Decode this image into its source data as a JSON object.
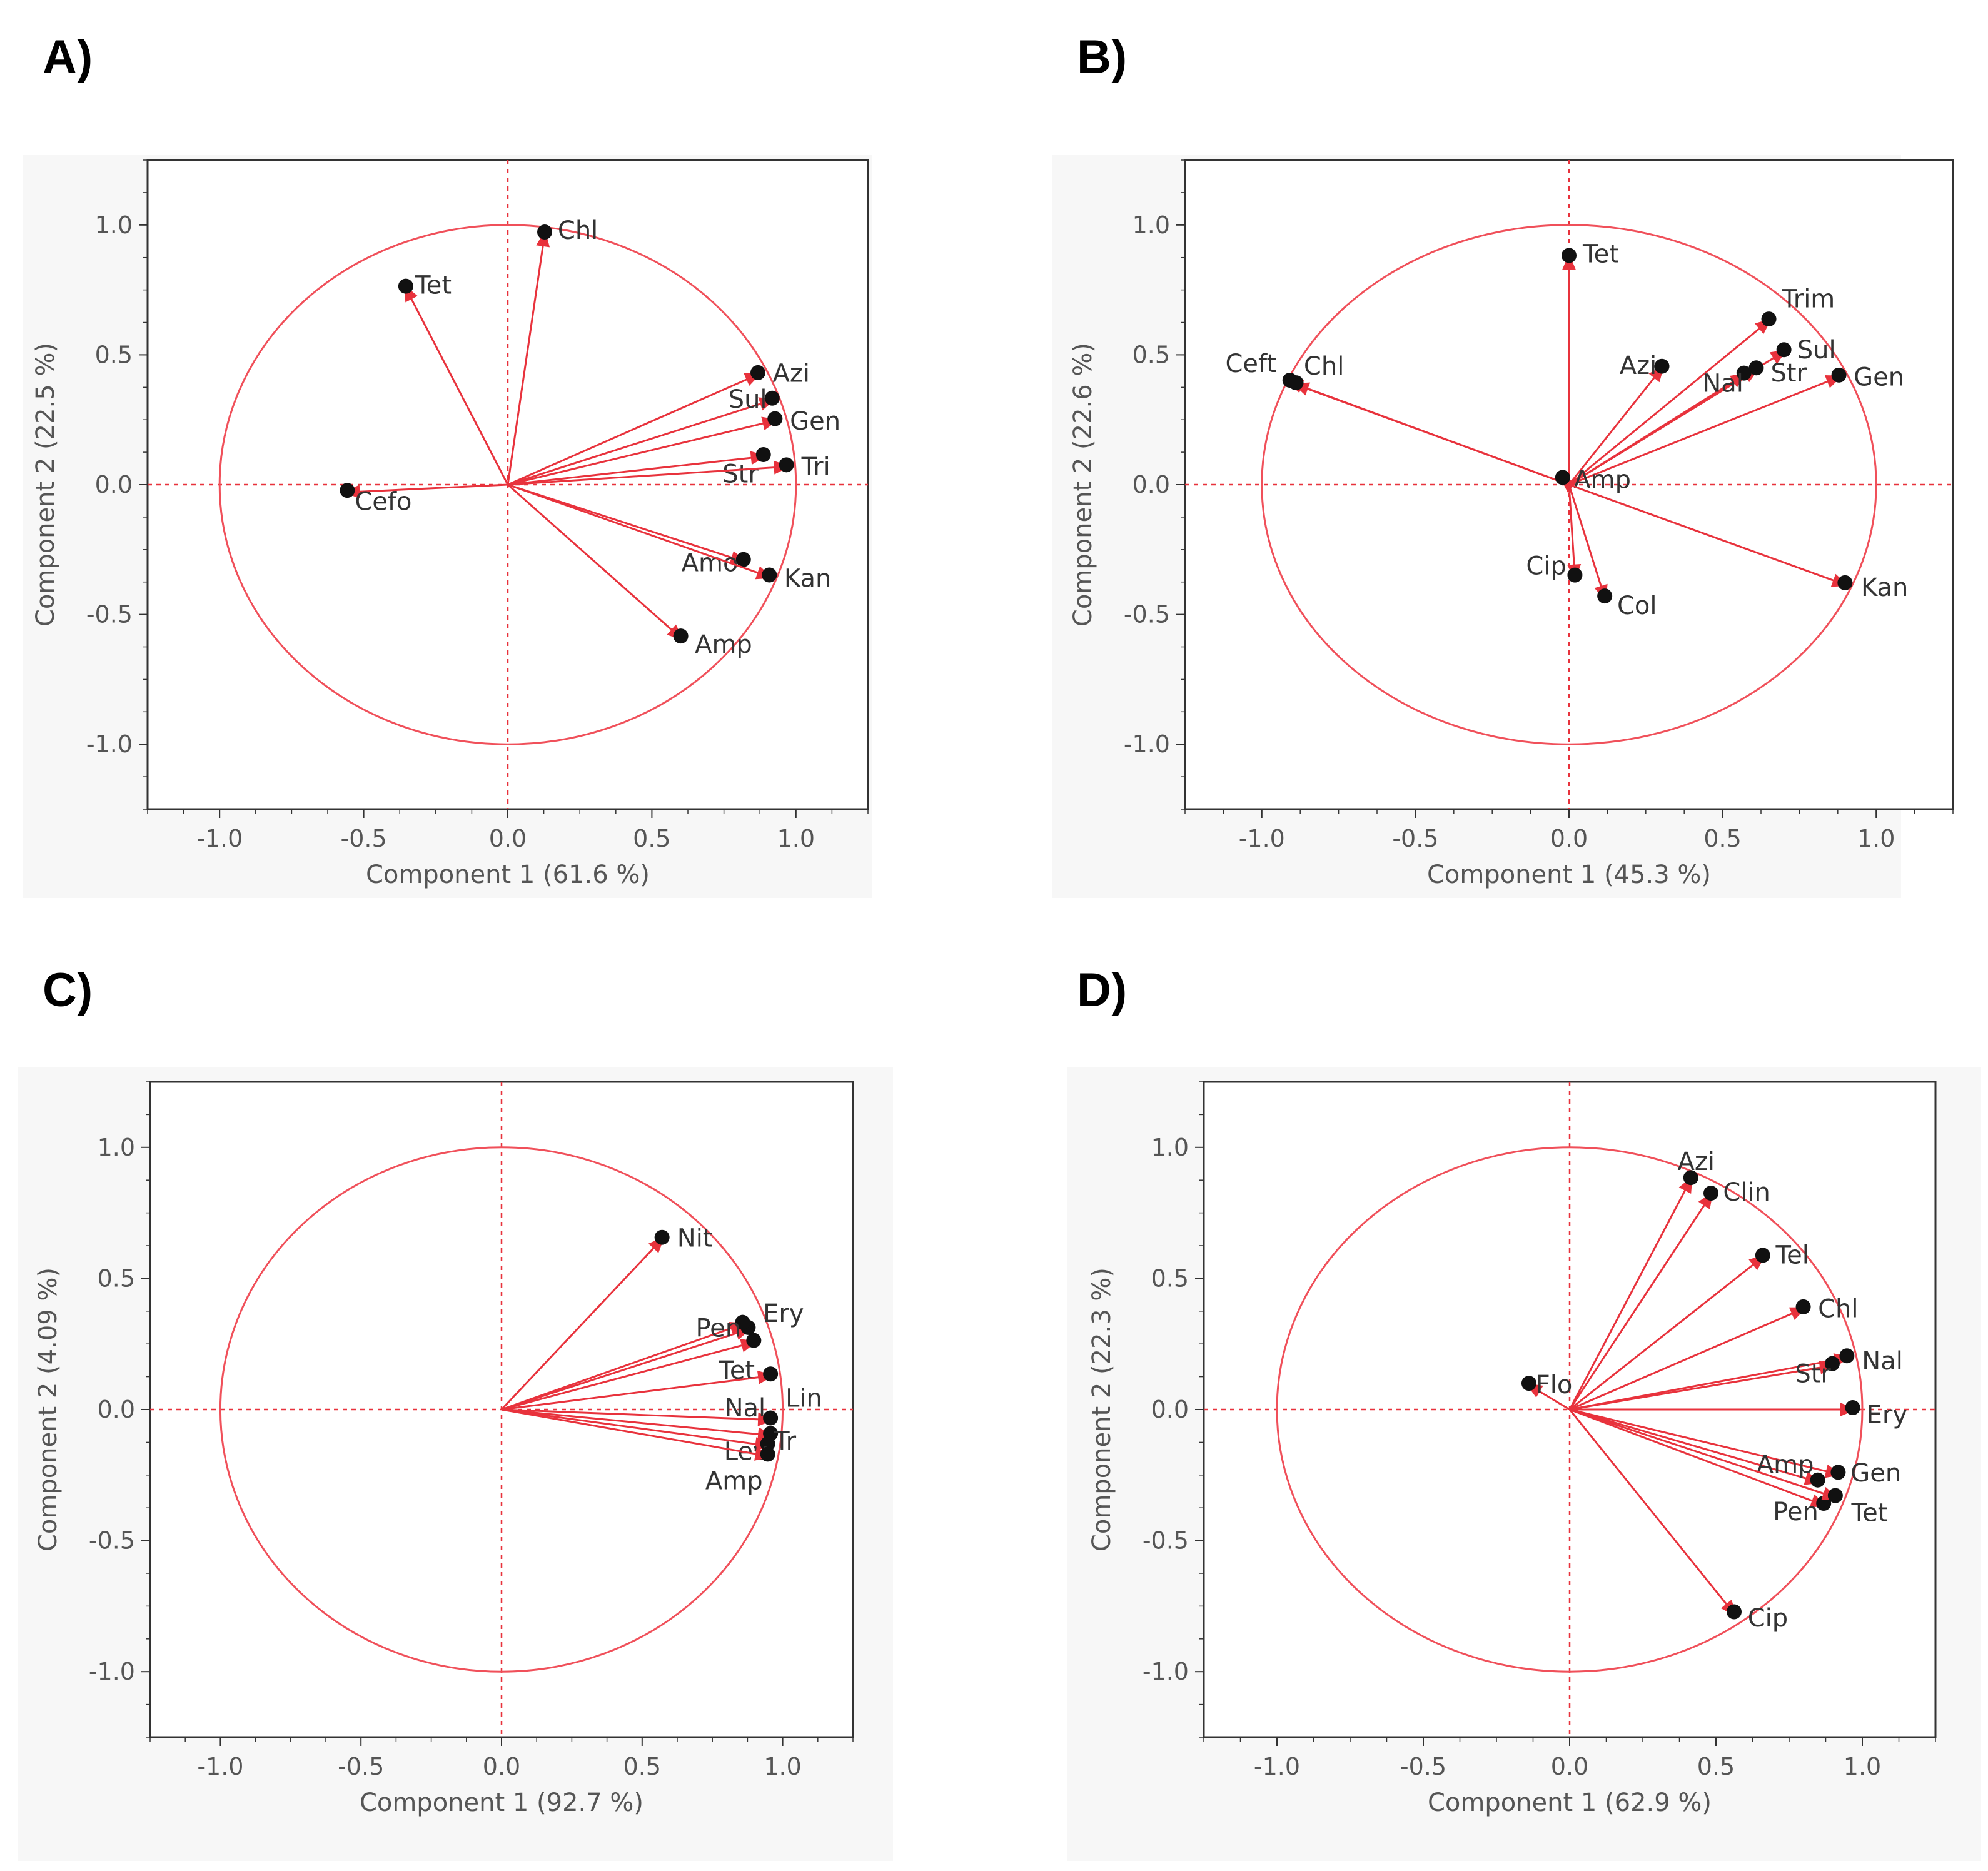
{
  "colors": {
    "accent": "#e8323c",
    "circle": "#f0505a",
    "point": "#111111",
    "frame": "#333333",
    "panel_bg": "#f7f7f7"
  },
  "chart_data": [
    {
      "panel": "A)",
      "type": "scatter",
      "xlabel": "Component 1  (61.6 %)",
      "ylabel": "Component 2  (22.5 %)",
      "xlim": [
        -1.25,
        1.25
      ],
      "ylim": [
        -1.25,
        1.25
      ],
      "xticks": [
        "-1.0",
        "-0.5",
        "0.0",
        "0.5",
        "1.0"
      ],
      "yticks": [
        "1.0",
        "0.5",
        "0.0",
        "-0.5",
        "-1.0"
      ],
      "points": [
        {
          "label": "Chl",
          "x": 0.13,
          "y": 0.98
        },
        {
          "label": "Tet",
          "x": -0.36,
          "y": 0.77
        },
        {
          "label": "Azi",
          "x": 0.88,
          "y": 0.43
        },
        {
          "label": "Sul",
          "x": 0.93,
          "y": 0.33
        },
        {
          "label": "Gen",
          "x": 0.94,
          "y": 0.25
        },
        {
          "label": "Str",
          "x": 0.9,
          "y": 0.11
        },
        {
          "label": "Tri",
          "x": 0.98,
          "y": 0.07
        },
        {
          "label": "Cefo",
          "x": -0.57,
          "y": -0.03
        },
        {
          "label": "Amo",
          "x": 0.83,
          "y": -0.3
        },
        {
          "label": "Kan",
          "x": 0.92,
          "y": -0.36
        },
        {
          "label": "Amp",
          "x": 0.61,
          "y": -0.6
        }
      ]
    },
    {
      "panel": "B)",
      "type": "scatter",
      "xlabel": "Component 1  (45.3 %)",
      "ylabel": "Component 2  (22.6 %)",
      "xlim": [
        -1.25,
        1.25
      ],
      "ylim": [
        -1.25,
        1.25
      ],
      "xticks": [
        "-1.0",
        "-0.5",
        "0.0",
        "0.5",
        "1.0"
      ],
      "yticks": [
        "1.0",
        "0.5",
        "0.0",
        "-0.5",
        "-1.0"
      ],
      "points": [
        {
          "label": "Tet",
          "x": 0.0,
          "y": 0.89
        },
        {
          "label": "Trim",
          "x": 0.66,
          "y": 0.64
        },
        {
          "label": "Sul",
          "x": 0.71,
          "y": 0.52
        },
        {
          "label": "Azi",
          "x": 0.31,
          "y": 0.46
        },
        {
          "label": "Str",
          "x": 0.62,
          "y": 0.45
        },
        {
          "label": "Nal",
          "x": 0.58,
          "y": 0.43
        },
        {
          "label": "Gen",
          "x": 0.89,
          "y": 0.42
        },
        {
          "label": "Ceft",
          "x": -0.92,
          "y": 0.4
        },
        {
          "label": "Chl",
          "x": -0.9,
          "y": 0.39
        },
        {
          "label": "Amp",
          "x": -0.03,
          "y": 0.03
        },
        {
          "label": "Cip",
          "x": 0.02,
          "y": -0.37
        },
        {
          "label": "Col",
          "x": 0.12,
          "y": -0.45
        },
        {
          "label": "Kan",
          "x": 0.91,
          "y": -0.39
        }
      ]
    },
    {
      "panel": "C)",
      "type": "scatter",
      "xlabel": "Component 1  (92.7 %)",
      "ylabel": "Component 2  (4.09 %)",
      "xlim": [
        -1.25,
        1.25
      ],
      "ylim": [
        -1.25,
        1.25
      ],
      "xticks": [
        "-1.0",
        "-0.5",
        "0.0",
        "0.5",
        "1.0"
      ],
      "yticks": [
        "1.0",
        "0.5",
        "0.0",
        "-0.5",
        "-1.0"
      ],
      "points": [
        {
          "label": "Nit",
          "x": 0.58,
          "y": 0.66
        },
        {
          "label": "Ery",
          "x": 0.89,
          "y": 0.31
        },
        {
          "label": "Pen",
          "x": 0.87,
          "y": 0.33
        },
        {
          "label": "Tet",
          "x": 0.91,
          "y": 0.26
        },
        {
          "label": "Lin",
          "x": 0.97,
          "y": 0.13
        },
        {
          "label": "Nal",
          "x": 0.97,
          "y": -0.04
        },
        {
          "label": "Tr",
          "x": 0.97,
          "y": -0.1
        },
        {
          "label": "Lev",
          "x": 0.96,
          "y": -0.14
        },
        {
          "label": "Amp",
          "x": 0.96,
          "y": -0.18
        }
      ]
    },
    {
      "panel": "D)",
      "type": "scatter",
      "xlabel": "Component 1  (62.9 %)",
      "ylabel": "Component 2  (22.3 %)",
      "xlim": [
        -1.25,
        1.25
      ],
      "ylim": [
        -1.25,
        1.25
      ],
      "xticks": [
        "-1.0",
        "-0.5",
        "0.0",
        "0.5",
        "1.0"
      ],
      "yticks": [
        "1.0",
        "0.5",
        "0.0",
        "-0.5",
        "-1.0"
      ],
      "points": [
        {
          "label": "Azi",
          "x": 0.42,
          "y": 0.89
        },
        {
          "label": "Clin",
          "x": 0.49,
          "y": 0.83
        },
        {
          "label": "Tel",
          "x": 0.67,
          "y": 0.59
        },
        {
          "label": "Chl",
          "x": 0.81,
          "y": 0.39
        },
        {
          "label": "Nal",
          "x": 0.96,
          "y": 0.2
        },
        {
          "label": "Str",
          "x": 0.91,
          "y": 0.17
        },
        {
          "label": "Flo",
          "x": -0.15,
          "y": 0.1
        },
        {
          "label": "Ery",
          "x": 0.98,
          "y": 0.0
        },
        {
          "label": "Gen",
          "x": 0.93,
          "y": -0.25
        },
        {
          "label": "Amp",
          "x": 0.86,
          "y": -0.28
        },
        {
          "label": "Pen",
          "x": 0.88,
          "y": -0.37
        },
        {
          "label": "Tet",
          "x": 0.92,
          "y": -0.34
        },
        {
          "label": "Cip",
          "x": 0.57,
          "y": -0.79
        }
      ]
    }
  ]
}
